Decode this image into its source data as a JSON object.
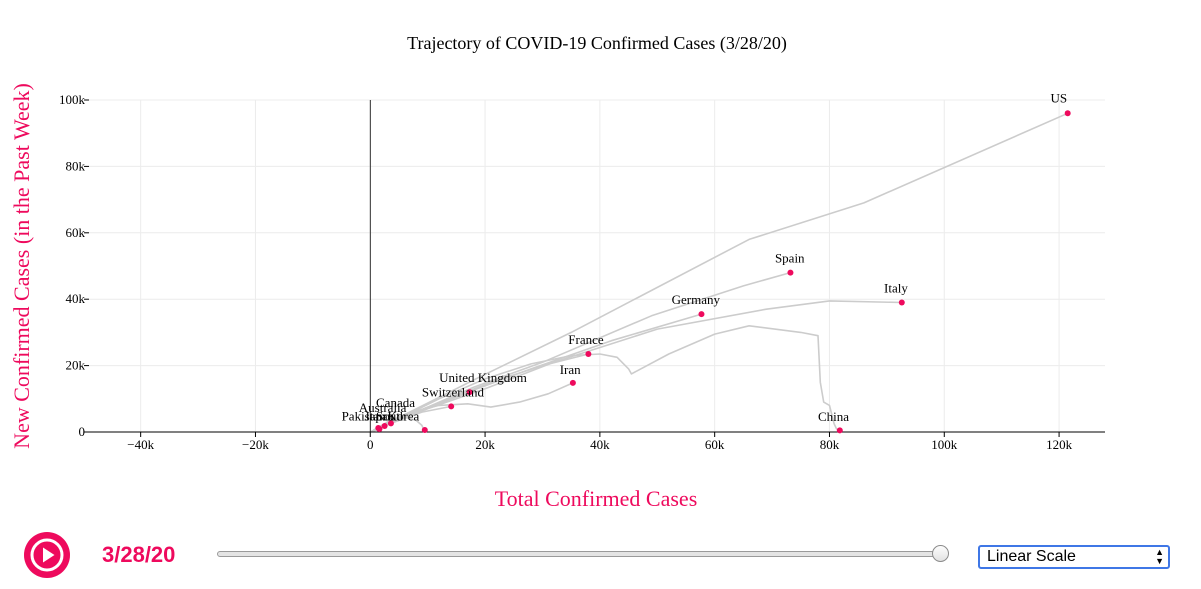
{
  "chart_data": {
    "type": "line",
    "title": "Trajectory of COVID-19 Confirmed Cases (3/28/20)",
    "xlabel": "Total Confirmed Cases",
    "ylabel": "New Confirmed Cases (in the Past Week)",
    "xlim": [
      -49000,
      128000
    ],
    "ylim": [
      0,
      100000
    ],
    "xticks": [
      -40000,
      -20000,
      0,
      20000,
      40000,
      60000,
      80000,
      100000,
      120000
    ],
    "xtick_labels": [
      "−40k",
      "−20k",
      "0",
      "20k",
      "40k",
      "60k",
      "80k",
      "100k",
      "120k"
    ],
    "yticks": [
      0,
      20000,
      40000,
      60000,
      80000,
      100000
    ],
    "ytick_labels": [
      "0",
      "20k",
      "40k",
      "60k",
      "80k",
      "100k"
    ],
    "grid": true,
    "series": [
      {
        "name": "US",
        "x": [
          500,
          2000,
          8000,
          19000,
          35000,
          66000,
          86000,
          121500
        ],
        "y": [
          400,
          1800,
          7000,
          16500,
          30000,
          58000,
          69000,
          96000
        ]
      },
      {
        "name": "Spain",
        "x": [
          500,
          3000,
          8000,
          18000,
          30000,
          49000,
          65000,
          73200
        ],
        "y": [
          300,
          2500,
          6000,
          13500,
          21000,
          35000,
          44000,
          48000
        ]
      },
      {
        "name": "Italy",
        "x": [
          1000,
          4000,
          10000,
          20000,
          32000,
          50000,
          69000,
          80000,
          92600
        ],
        "y": [
          600,
          3000,
          7000,
          13000,
          21000,
          31000,
          37000,
          39500,
          39000
        ]
      },
      {
        "name": "Germany",
        "x": [
          500,
          3000,
          9000,
          17000,
          28000,
          42000,
          57700
        ],
        "y": [
          300,
          2500,
          6500,
          12000,
          19000,
          27500,
          35500
        ]
      },
      {
        "name": "France",
        "x": [
          500,
          3000,
          8000,
          15000,
          22000,
          30000,
          38000
        ],
        "y": [
          300,
          2500,
          6000,
          11000,
          15500,
          20000,
          23500
        ]
      },
      {
        "name": "China",
        "x": [
          500,
          5000,
          12000,
          20000,
          28000,
          35000,
          40000,
          43000,
          45000,
          45500,
          52000,
          60000,
          66000,
          75000,
          78000,
          78400,
          79000,
          80000,
          80800,
          81200,
          81500,
          81800
        ],
        "y": [
          400,
          4000,
          10000,
          16000,
          20500,
          23000,
          23500,
          22500,
          19000,
          17500,
          23500,
          29500,
          32000,
          30000,
          29000,
          15000,
          9000,
          8000,
          2500,
          1000,
          600,
          500
        ]
      },
      {
        "name": "Iran",
        "x": [
          500,
          3000,
          7000,
          12000,
          17000,
          21000,
          26000,
          31000,
          35300
        ],
        "y": [
          500,
          3000,
          6000,
          8000,
          8500,
          7500,
          9000,
          11500,
          14800
        ]
      },
      {
        "name": "United Kingdom",
        "x": [
          300,
          2000,
          5000,
          10000,
          17300
        ],
        "y": [
          200,
          1500,
          4000,
          7500,
          12000
        ]
      },
      {
        "name": "Switzerland",
        "x": [
          300,
          2000,
          5000,
          9000,
          14100
        ],
        "y": [
          200,
          1500,
          3500,
          6000,
          7700
        ]
      },
      {
        "name": "Canada",
        "x": [
          200,
          1000,
          2500,
          3600
        ],
        "y": [
          150,
          800,
          1800,
          2600
        ]
      },
      {
        "name": "Australia",
        "x": [
          100,
          700,
          1500,
          2500
        ],
        "y": [
          80,
          500,
          1100,
          1800
        ]
      },
      {
        "name": "Korea, South",
        "x": [
          3000,
          6000,
          8000,
          9000,
          9300,
          9500
        ],
        "y": [
          2500,
          4500,
          3500,
          2000,
          800,
          600
        ]
      },
      {
        "name": "Pakistan",
        "x": [
          100,
          500,
          1000,
          1400
        ],
        "y": [
          80,
          400,
          900,
          1200
        ]
      },
      {
        "name": "Japan",
        "x": [
          200,
          700,
          1200,
          1600
        ],
        "y": [
          100,
          350,
          650,
          900
        ]
      },
      {
        "name": "Italy-hidden",
        "x": [],
        "y": []
      }
    ],
    "labels": [
      {
        "text": "US",
        "x": 118500,
        "y": 99300
      },
      {
        "text": "Spain",
        "x": 70500,
        "y": 51000
      },
      {
        "text": "Italy",
        "x": 89500,
        "y": 42000
      },
      {
        "text": "Germany",
        "x": 52500,
        "y": 38500
      },
      {
        "text": "France",
        "x": 34500,
        "y": 26500
      },
      {
        "text": "Iran",
        "x": 33000,
        "y": 17500
      },
      {
        "text": "China",
        "x": 78000,
        "y": 3300
      },
      {
        "text": "United Kingdom",
        "x": 12000,
        "y": 15000
      },
      {
        "text": "Switzerland",
        "x": 9000,
        "y": 10700
      },
      {
        "text": "Canada",
        "x": 1000,
        "y": 7500
      },
      {
        "text": "Australia",
        "x": -2000,
        "y": 6000
      },
      {
        "text": "Korea",
        "x": 3000,
        "y": 3500
      },
      {
        "text": "Pakistan",
        "x": -5000,
        "y": 3500
      },
      {
        "text": "Japan",
        "x": -1000,
        "y": 3500
      },
      {
        "text": "South",
        "x": 1000,
        "y": 3500
      }
    ],
    "points_color": "#ee0a5d",
    "line_color": "#cccccc"
  },
  "controls": {
    "date": "3/28/20",
    "slider_value": 1,
    "scale_selected": "Linear Scale",
    "accent_color": "#ee0a5d",
    "play_icon": "play-icon"
  }
}
